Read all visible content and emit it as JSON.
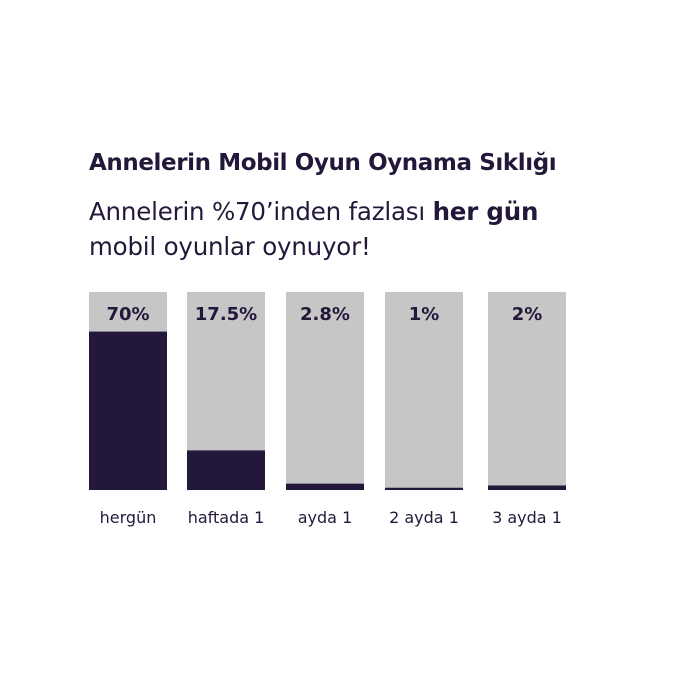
{
  "header": {
    "title": "Annelerin Mobil Oyun Oynama Sıklığı",
    "subtitle_line1": "Annelerin %70’inden fazlası ",
    "subtitle_bold": "her gün",
    "subtitle_line2": "mobil oyunlar oynuyor!"
  },
  "colors": {
    "bar_fill": "#24183a",
    "bar_track": "#c6c6c6",
    "text": "#24183a",
    "background": "#ffffff"
  },
  "chart_data": {
    "type": "bar",
    "title": "Annelerin Mobil Oyun Oynama Sıklığı",
    "categories": [
      "hergün",
      "haftada 1",
      "ayda 1",
      "2 ayda 1",
      "3 ayda 1"
    ],
    "values": [
      70,
      17.5,
      2.8,
      1,
      2
    ],
    "value_labels": [
      "70%",
      "17.5%",
      "2.8%",
      "1%",
      "2%"
    ],
    "unit": "%",
    "ylim": [
      0,
      87.5
    ],
    "grid": false,
    "legend": "none"
  }
}
